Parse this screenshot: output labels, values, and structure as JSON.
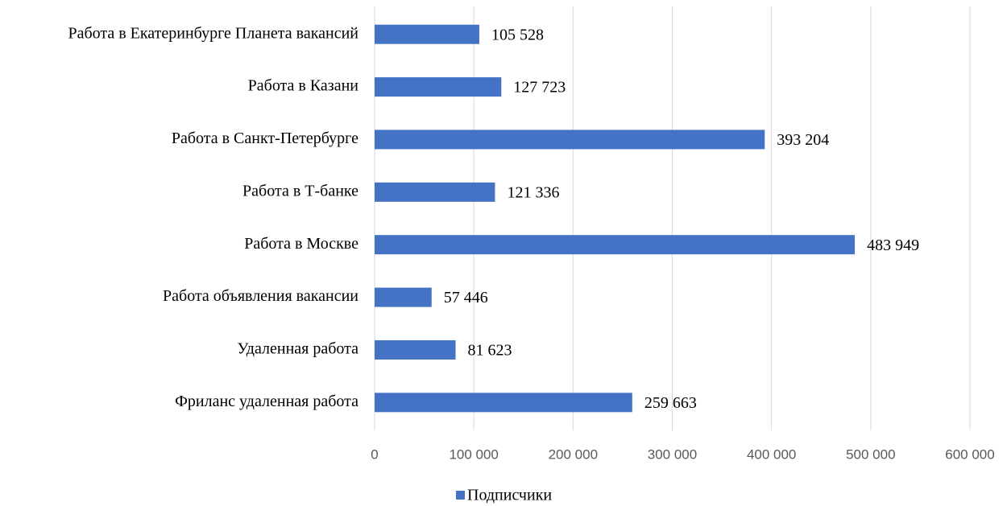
{
  "chart_data": {
    "type": "bar",
    "orientation": "horizontal",
    "categories": [
      "Работа в Екатеринбурге Планета вакансий",
      "Работа в Казани",
      "Работа в Санкт-Петербурге",
      "Работа в Т-банке",
      "Работа в Москве",
      "Работа объявления вакансии",
      "Удаленная работа",
      "Фриланс удаленная работа"
    ],
    "series": [
      {
        "name": "Подписчики",
        "color": "#4472c4",
        "values": [
          105528,
          127723,
          393204,
          121336,
          483949,
          57446,
          81623,
          259663
        ],
        "value_labels": [
          "105 528",
          "127 723",
          "393 204",
          "121 336",
          "483 949",
          "57 446",
          "81 623",
          "259 663"
        ]
      }
    ],
    "xlim": [
      0,
      600000
    ],
    "xticks": [
      0,
      {
        "value": 100000,
        "label": "100 000"
      },
      {
        "value": 200000,
        "label": "200 000"
      },
      {
        "value": 300000,
        "label": "300 000"
      },
      {
        "value": 400000,
        "label": "400 000"
      },
      {
        "value": 500000,
        "label": "500 000"
      },
      {
        "value": 600000,
        "label": "600 000"
      }
    ],
    "grid": true,
    "legend": "bottom"
  }
}
